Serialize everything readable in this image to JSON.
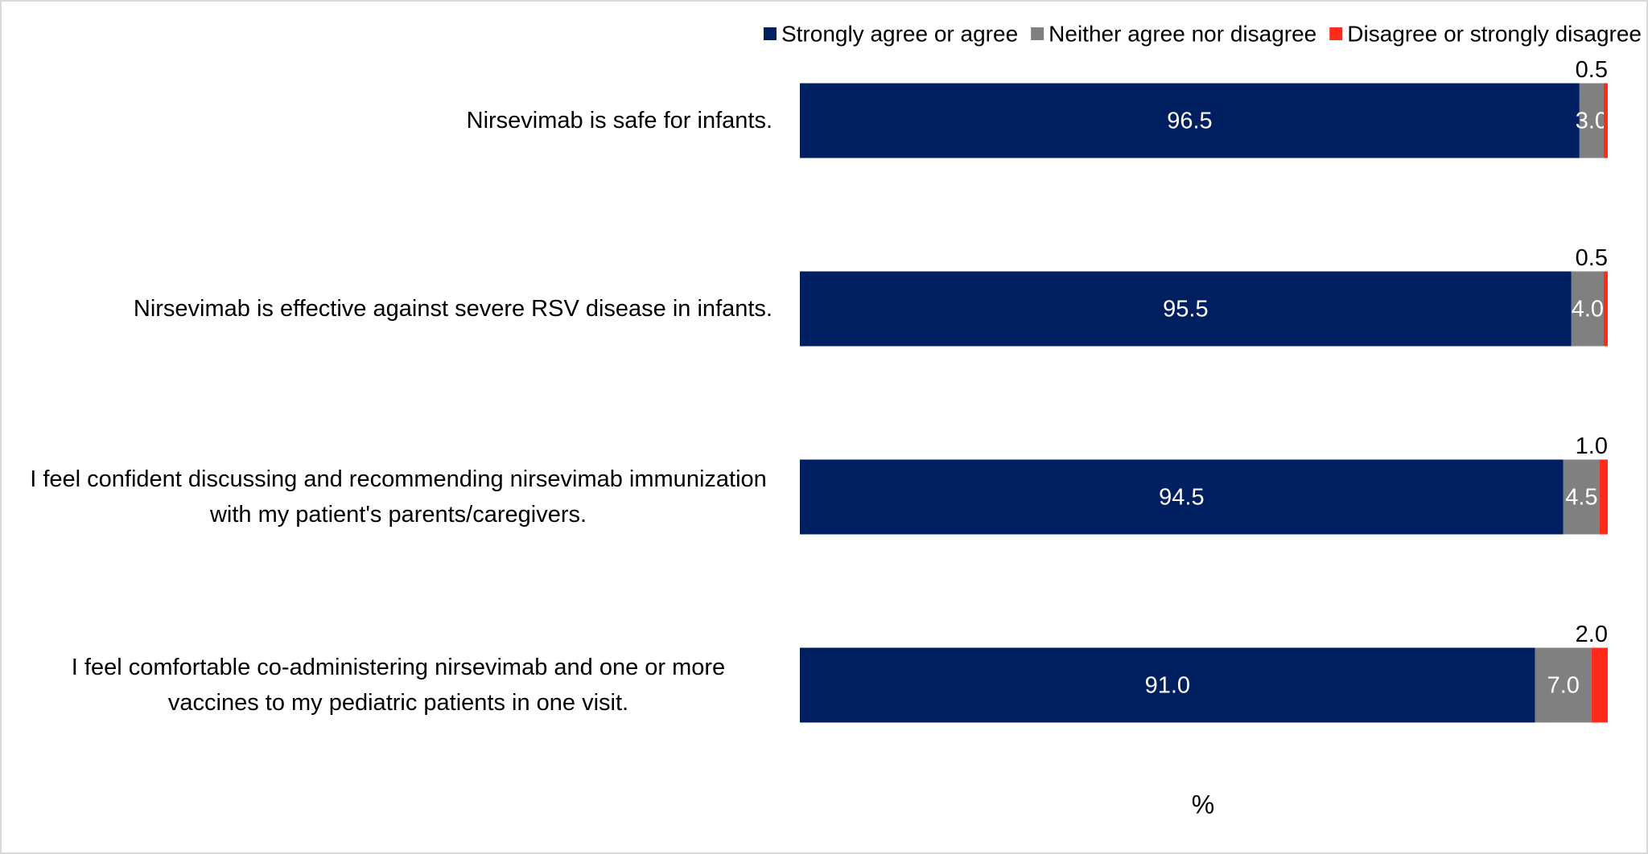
{
  "chart_data": {
    "type": "stacked-bar-horizontal",
    "x_label": "%",
    "legend": "top-right",
    "xlim": [
      0,
      100
    ],
    "categories": [
      "Nirsevimab is safe for infants.",
      "Nirsevimab is effective against severe RSV disease in infants.",
      "I feel confident discussing and recommending nirsevimab immunization with my patient's parents/caregivers.",
      "I feel comfortable co-administering nirsevimab and one or more vaccines to my pediatric patients in one visit."
    ],
    "series": [
      {
        "name": "Strongly agree or agree",
        "color": "#001f60",
        "values": [
          96.5,
          95.5,
          94.5,
          91.0
        ],
        "value_labels": [
          "96.5",
          "95.5",
          "94.5",
          "91.0"
        ]
      },
      {
        "name": "Neither agree nor disagree",
        "color": "#808080",
        "values": [
          3.0,
          4.0,
          4.5,
          7.0
        ],
        "value_labels": [
          "3.0",
          "4.0",
          "4.5",
          "7.0"
        ]
      },
      {
        "name": "Disagree or strongly disagree",
        "color": "#ff2a1a",
        "values": [
          0.5,
          0.5,
          1.0,
          2.0
        ],
        "value_labels": [
          "0.5",
          "0.5",
          "1.0",
          "2.0"
        ]
      }
    ]
  }
}
